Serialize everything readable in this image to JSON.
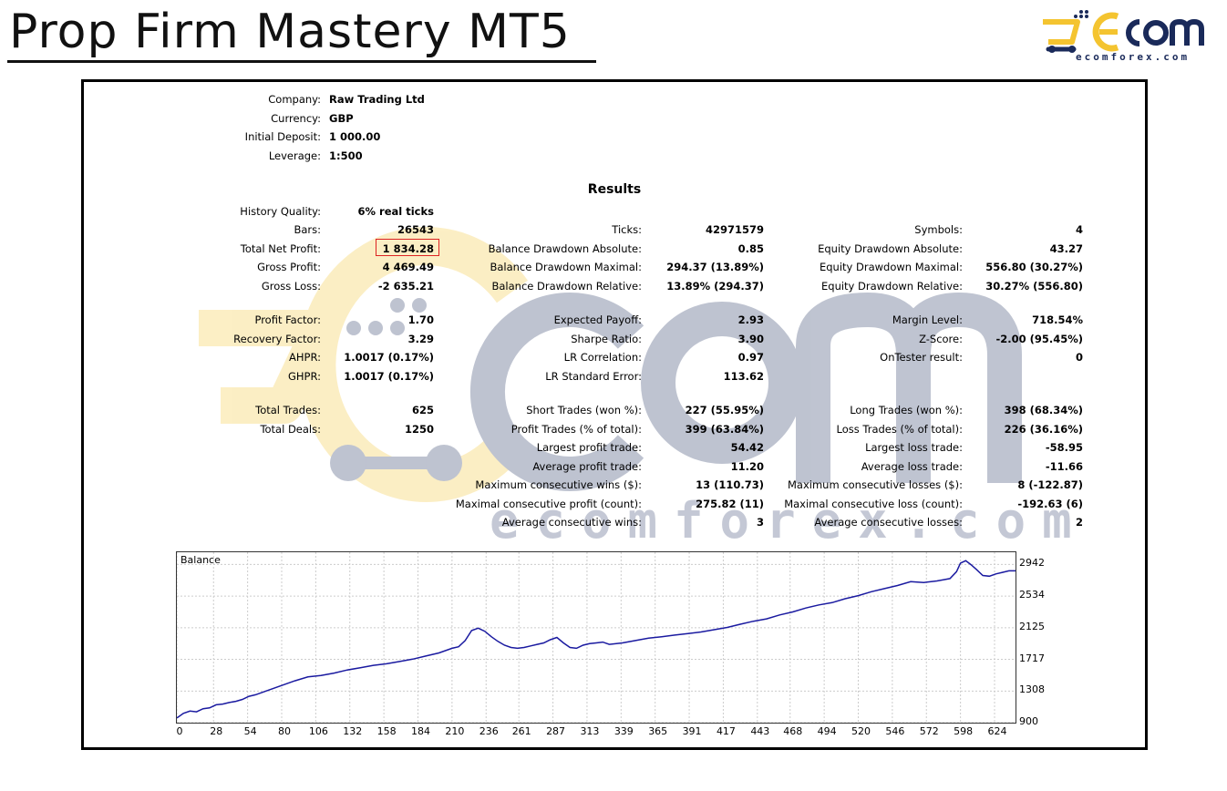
{
  "header": {
    "title": "Prop Firm Mastery MT5",
    "logo_site": "ecomforex.com",
    "logo_colors": {
      "yellow": "#f4c430",
      "navy": "#1a2a5a"
    }
  },
  "account": {
    "company_label": "Company:",
    "company": "Raw Trading Ltd",
    "currency_label": "Currency:",
    "currency": "GBP",
    "deposit_label": "Initial Deposit:",
    "deposit": "1 000.00",
    "leverage_label": "Leverage:",
    "leverage": "1:500"
  },
  "results_title": "Results",
  "col1": [
    {
      "label": "History Quality:",
      "value": "6% real ticks"
    },
    {
      "label": "Bars:",
      "value": "26543"
    },
    {
      "label": "Total Net Profit:",
      "value": "1 834.28"
    },
    {
      "label": "Gross Profit:",
      "value": "4 469.49"
    },
    {
      "label": "Gross Loss:",
      "value": "-2 635.21"
    },
    {
      "label": "Profit Factor:",
      "value": "1.70"
    },
    {
      "label": "Recovery Factor:",
      "value": "3.29"
    },
    {
      "label": "AHPR:",
      "value": "1.0017 (0.17%)"
    },
    {
      "label": "GHPR:",
      "value": "1.0017 (0.17%)"
    },
    {
      "label": "Total Trades:",
      "value": "625"
    },
    {
      "label": "Total Deals:",
      "value": "1250"
    }
  ],
  "col2": [
    {
      "label": "Ticks:",
      "value": "42971579"
    },
    {
      "label": "Balance Drawdown Absolute:",
      "value": "0.85"
    },
    {
      "label": "Balance Drawdown Maximal:",
      "value": "294.37 (13.89%)"
    },
    {
      "label": "Balance Drawdown Relative:",
      "value": "13.89% (294.37)"
    },
    {
      "label": "Expected Payoff:",
      "value": "2.93"
    },
    {
      "label": "Sharpe Ratio:",
      "value": "3.90"
    },
    {
      "label": "LR Correlation:",
      "value": "0.97"
    },
    {
      "label": "LR Standard Error:",
      "value": "113.62"
    },
    {
      "label": "Short Trades (won %):",
      "value": "227 (55.95%)"
    },
    {
      "label": "Profit Trades (% of total):",
      "value": "399 (63.84%)"
    },
    {
      "label": "Largest profit trade:",
      "value": "54.42"
    },
    {
      "label": "Average profit trade:",
      "value": "11.20"
    },
    {
      "label": "Maximum consecutive wins ($):",
      "value": "13 (110.73)"
    },
    {
      "label": "Maximal consecutive profit (count):",
      "value": "275.82 (11)"
    },
    {
      "label": "Average consecutive wins:",
      "value": "3"
    }
  ],
  "col3": [
    {
      "label": "Symbols:",
      "value": "4"
    },
    {
      "label": "Equity Drawdown Absolute:",
      "value": "43.27"
    },
    {
      "label": "Equity Drawdown Maximal:",
      "value": "556.80 (30.27%)"
    },
    {
      "label": "Equity Drawdown Relative:",
      "value": "30.27% (556.80)"
    },
    {
      "label": "Margin Level:",
      "value": "718.54%"
    },
    {
      "label": "Z-Score:",
      "value": "-2.00 (95.45%)"
    },
    {
      "label": "OnTester result:",
      "value": "0"
    },
    {
      "label": "Long Trades (won %):",
      "value": "398 (68.34%)"
    },
    {
      "label": "Loss Trades (% of total):",
      "value": "226 (36.16%)"
    },
    {
      "label": "Largest loss trade:",
      "value": "-58.95"
    },
    {
      "label": "Average loss trade:",
      "value": "-11.66"
    },
    {
      "label": "Maximum consecutive losses ($):",
      "value": "8 (-122.87)"
    },
    {
      "label": "Maximal consecutive loss (count):",
      "value": "-192.63 (6)"
    },
    {
      "label": "Average consecutive losses:",
      "value": "2"
    }
  ],
  "watermark": {
    "text": "ecomforex.com"
  },
  "chart_data": {
    "type": "line",
    "title": "Balance",
    "line_color": "#1a1aa0",
    "xticks": [
      "0",
      "28",
      "54",
      "80",
      "106",
      "132",
      "158",
      "184",
      "210",
      "236",
      "261",
      "287",
      "313",
      "339",
      "365",
      "391",
      "417",
      "443",
      "468",
      "494",
      "520",
      "546",
      "572",
      "598",
      "624"
    ],
    "yticks": [
      "2942",
      "2534",
      "2125",
      "1717",
      "1308",
      "900"
    ],
    "xlim": [
      0,
      640
    ],
    "ylim": [
      900,
      3100
    ],
    "series": [
      {
        "x": [
          0,
          5,
          10,
          15,
          20,
          25,
          30,
          35,
          40,
          45,
          50,
          55,
          60,
          70,
          80,
          90,
          100,
          110,
          120,
          130,
          140,
          150,
          160,
          170,
          180,
          190,
          200,
          210,
          215,
          220,
          225,
          230,
          235,
          240,
          245,
          250,
          255,
          260,
          265,
          270,
          275,
          280,
          285,
          290,
          295,
          300,
          305,
          310,
          315,
          320,
          325,
          330,
          340,
          350,
          360,
          370,
          380,
          390,
          400,
          410,
          420,
          430,
          440,
          450,
          460,
          470,
          480,
          490,
          500,
          510,
          520,
          530,
          540,
          550,
          560,
          570,
          580,
          590,
          595,
          598,
          602,
          606,
          610,
          615,
          620,
          625,
          630,
          635,
          640
        ],
        "y": [
          960,
          1020,
          1050,
          1040,
          1080,
          1090,
          1130,
          1140,
          1160,
          1175,
          1200,
          1240,
          1260,
          1320,
          1380,
          1440,
          1490,
          1510,
          1540,
          1580,
          1610,
          1640,
          1660,
          1690,
          1720,
          1760,
          1800,
          1860,
          1880,
          1960,
          2090,
          2120,
          2080,
          2010,
          1950,
          1900,
          1870,
          1860,
          1870,
          1890,
          1910,
          1930,
          1970,
          2000,
          1930,
          1870,
          1860,
          1900,
          1920,
          1930,
          1940,
          1910,
          1930,
          1960,
          1990,
          2010,
          2030,
          2050,
          2070,
          2100,
          2130,
          2170,
          2210,
          2240,
          2290,
          2330,
          2380,
          2420,
          2450,
          2500,
          2540,
          2590,
          2630,
          2670,
          2720,
          2710,
          2730,
          2760,
          2850,
          2960,
          2990,
          2940,
          2880,
          2800,
          2790,
          2820,
          2840,
          2860,
          2860
        ]
      }
    ]
  }
}
